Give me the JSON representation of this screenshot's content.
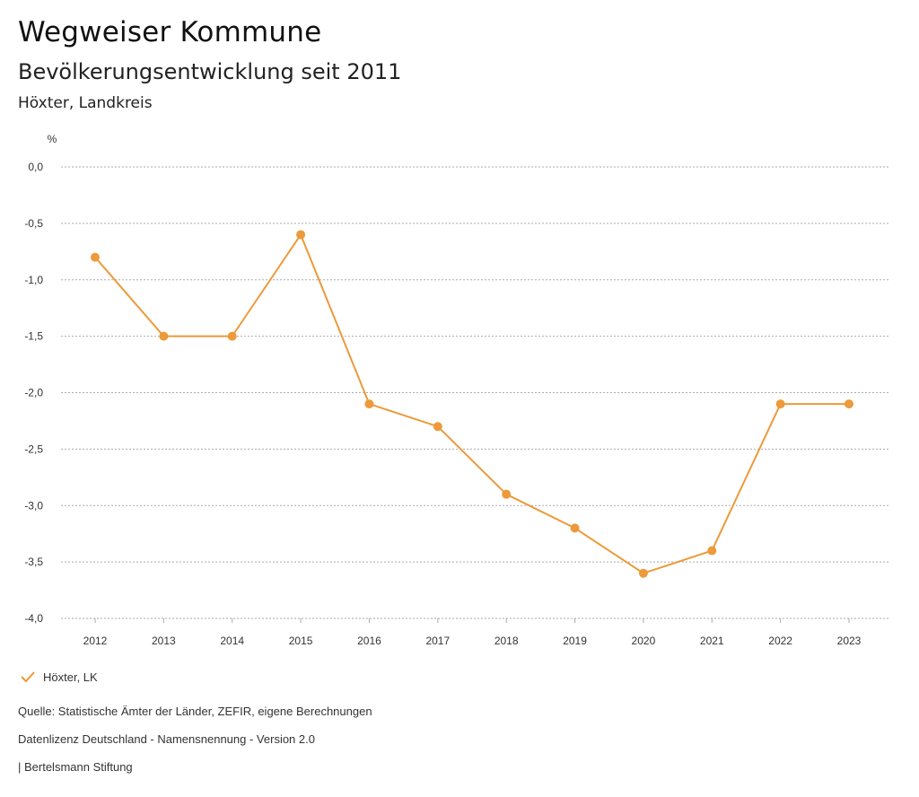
{
  "header": {
    "title": "Wegweiser Kommune",
    "subtitle": "Bevölkerungsentwicklung seit 2011",
    "region": "Höxter, Landkreis"
  },
  "chart_data": {
    "type": "line",
    "title": "Bevölkerungsentwicklung seit 2011",
    "ylabel": "%",
    "xlabel": "",
    "categories": [
      "2012",
      "2013",
      "2014",
      "2015",
      "2016",
      "2017",
      "2018",
      "2019",
      "2020",
      "2021",
      "2022",
      "2023"
    ],
    "series": [
      {
        "name": "Höxter, LK",
        "color": "#ec9a3a",
        "values": [
          -0.8,
          -1.5,
          -1.5,
          -0.6,
          -2.1,
          -2.3,
          -2.9,
          -3.2,
          -3.6,
          -3.4,
          -2.1,
          -2.1
        ]
      }
    ],
    "ylim": [
      -4.0,
      0.0
    ],
    "yticks": [
      0.0,
      -0.5,
      -1.0,
      -1.5,
      -2.0,
      -2.5,
      -3.0,
      -3.5,
      -4.0
    ],
    "ytick_labels": [
      "0,0",
      "-0,5",
      "-1,0",
      "-1,5",
      "-2,0",
      "-2,5",
      "-3,0",
      "-3,5",
      "-4,0"
    ],
    "grid": true,
    "legend_position": "bottom-left"
  },
  "legend": {
    "label": "Höxter, LK"
  },
  "footer": {
    "source": "Quelle: Statistische Ämter der Länder, ZEFIR, eigene Berechnungen",
    "license": "Datenlizenz Deutschland - Namensnennung - Version 2.0",
    "publisher": "| Bertelsmann Stiftung"
  }
}
